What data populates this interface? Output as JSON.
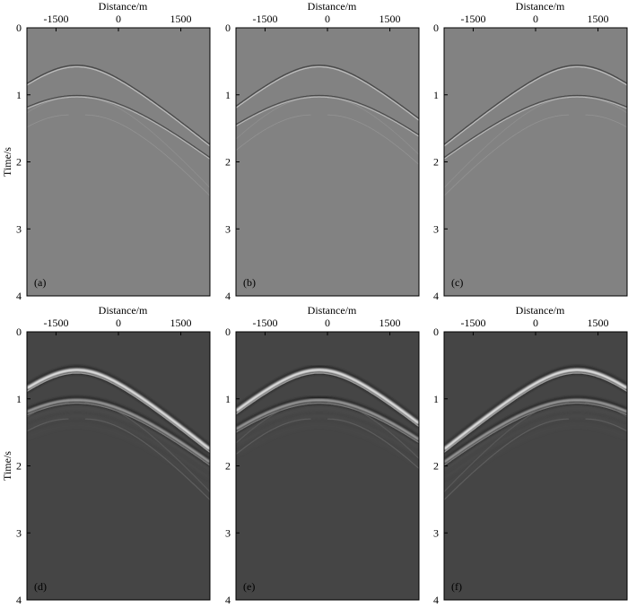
{
  "figure": {
    "xlabel": "Distance/m",
    "ylabel": "Time/s",
    "xticks": [
      -1500,
      0,
      1500
    ],
    "xtick_labels": [
      "-1500",
      "0",
      "1500"
    ],
    "yticks": [
      0,
      1,
      2,
      3,
      4
    ],
    "xlim": [
      -2200,
      2200
    ],
    "ylim": [
      0,
      4
    ],
    "colors": {
      "top_background": "#828282",
      "bottom_background": "#454545",
      "axis": "#000000"
    }
  },
  "chart_data": [
    {
      "type": "heatmap",
      "label": "(a)",
      "source_x": -1000,
      "apex_times": [
        0.57,
        1.02
      ],
      "style": "raw",
      "xlabel": "Distance/m",
      "ylabel": "Time/s",
      "xlim": [
        -2200,
        2200
      ],
      "ylim": [
        0,
        4
      ]
    },
    {
      "type": "heatmap",
      "label": "(b)",
      "source_x": -200,
      "apex_times": [
        0.57,
        1.02
      ],
      "style": "raw",
      "xlabel": "Distance/m",
      "ylabel": "",
      "xlim": [
        -2200,
        2200
      ],
      "ylim": [
        0,
        4
      ]
    },
    {
      "type": "heatmap",
      "label": "(c)",
      "source_x": 1000,
      "apex_times": [
        0.57,
        1.02
      ],
      "style": "raw",
      "xlabel": "Distance/m",
      "ylabel": "",
      "xlim": [
        -2200,
        2200
      ],
      "ylim": [
        0,
        4
      ]
    },
    {
      "type": "heatmap",
      "label": "(d)",
      "source_x": -1000,
      "apex_times": [
        0.57,
        1.02
      ],
      "style": "processed",
      "xlabel": "Distance/m",
      "ylabel": "Time/s",
      "xlim": [
        -2200,
        2200
      ],
      "ylim": [
        0,
        4
      ]
    },
    {
      "type": "heatmap",
      "label": "(e)",
      "source_x": -200,
      "apex_times": [
        0.57,
        1.02
      ],
      "style": "processed",
      "xlabel": "Distance/m",
      "ylabel": "",
      "xlim": [
        -2200,
        2200
      ],
      "ylim": [
        0,
        4
      ]
    },
    {
      "type": "heatmap",
      "label": "(f)",
      "source_x": 1000,
      "apex_times": [
        0.57,
        1.02
      ],
      "style": "processed",
      "xlabel": "Distance/m",
      "ylabel": "",
      "xlim": [
        -2200,
        2200
      ],
      "ylim": [
        0,
        4
      ]
    }
  ]
}
